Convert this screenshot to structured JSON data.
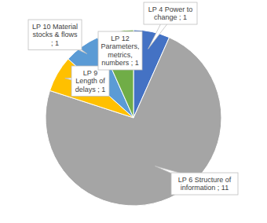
{
  "chart_data": {
    "type": "pie",
    "categories": [
      "LP 4 Power to change",
      "LP 6 Structure of information",
      "LP 9 Length of delays",
      "LP 10 Material stocks & flows",
      "LP 12 Parameters, metrics, numbers"
    ],
    "values": [
      1,
      11,
      1,
      1,
      1
    ],
    "colors": [
      "#4472c4",
      "#a5a5a5",
      "#ffc000",
      "#5b9bd5",
      "#70ad47"
    ],
    "data_labels": true
  }
}
